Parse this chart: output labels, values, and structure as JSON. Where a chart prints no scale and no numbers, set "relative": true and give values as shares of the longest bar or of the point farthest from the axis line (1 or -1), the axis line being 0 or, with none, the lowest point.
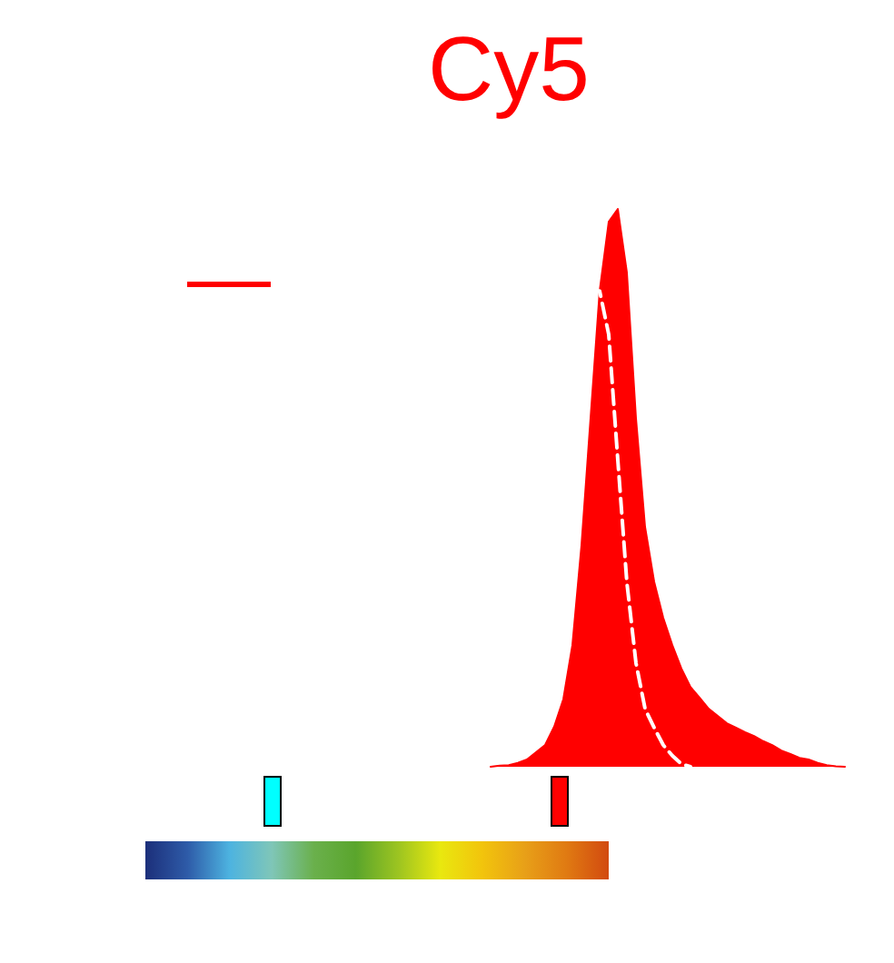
{
  "chart_data": {
    "type": "area",
    "title": "Cy5",
    "relative": true,
    "categories": [
      null,
      null,
      null,
      null,
      null,
      null,
      null,
      null,
      null,
      null,
      null,
      null,
      null,
      null,
      null,
      null,
      null,
      null,
      null,
      null,
      null,
      null,
      null,
      null,
      null,
      null,
      null,
      null,
      null,
      null,
      null,
      null,
      null,
      null,
      null,
      null,
      null,
      null,
      null,
      null
    ],
    "series": [
      {
        "color": "#ff0000",
        "values": [
          0,
          0.002,
          0.003,
          0.007,
          0.013,
          0.026,
          0.039,
          0.072,
          0.121,
          0.218,
          0.397,
          0.625,
          0.853,
          0.977,
          1,
          0.886,
          0.625,
          0.43,
          0.332,
          0.267,
          0.218,
          0.176,
          0.143,
          0.124,
          0.104,
          0.091,
          0.078,
          0.07,
          0.062,
          0.055,
          0.046,
          0.039,
          0.029,
          0.023,
          0.016,
          0.013,
          0.007,
          0.003,
          0.001,
          0
        ]
      },
      {
        "type": "line",
        "line_style": "dashed",
        "color": "#ffffff",
        "values": [
          null,
          null,
          null,
          null,
          null,
          null,
          null,
          null,
          null,
          null,
          null,
          0.853,
          0.853,
          0.775,
          0.55,
          0.33,
          0.186,
          0.104,
          0.07,
          0.039,
          0.02,
          0.005,
          0,
          null,
          null,
          null,
          null,
          null,
          null,
          null,
          null,
          null,
          null,
          null,
          null,
          null,
          null,
          null,
          null,
          null
        ]
      }
    ],
    "grid": false,
    "marker": "none"
  }
}
